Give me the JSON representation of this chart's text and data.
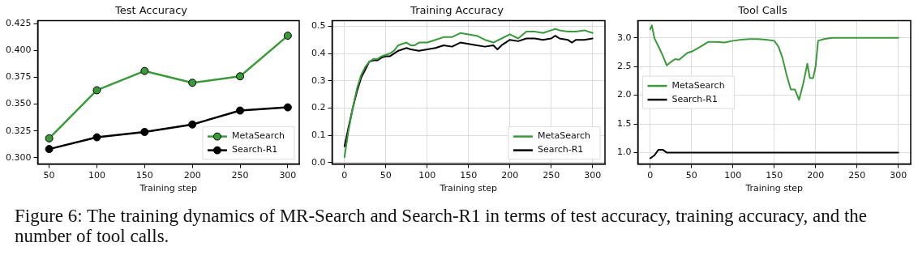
{
  "chart_data": [
    {
      "type": "line",
      "title": "Test Accuracy",
      "xlabel": "Training step",
      "x": [
        50,
        100,
        150,
        200,
        250,
        300
      ],
      "xlim": [
        38,
        312
      ],
      "xticks": [
        50,
        100,
        150,
        200,
        250,
        300
      ],
      "ylim": [
        0.294,
        0.428
      ],
      "yticks": [
        {
          "value": 0.3,
          "label": "0.300"
        },
        0.325,
        {
          "value": 0.35,
          "label": "0.350"
        },
        0.375,
        {
          "value": 0.4,
          "label": "0.400"
        },
        0.425
      ],
      "grid": false,
      "legend": "bottom right",
      "marker": "circle",
      "annotations": [
        "Figure 6: The training dynamics of MR-Search and Search-R1 in terms of test accuracy, training accuracy, and the number of tool calls."
      ],
      "series": [
        {
          "name": "MetaSearch",
          "color": "#3a9a3a",
          "values": [
            0.318,
            0.363,
            0.381,
            0.37,
            0.376,
            0.414
          ]
        },
        {
          "name": "Search-R1",
          "color": "#000000",
          "values": [
            0.308,
            0.319,
            0.324,
            0.331,
            0.344,
            0.347
          ]
        }
      ]
    },
    {
      "type": "line",
      "title": "Training Accuracy",
      "xlabel": "Training step",
      "xlim": [
        -15,
        315
      ],
      "xticks": [
        0,
        50,
        100,
        150,
        200,
        250,
        300
      ],
      "ylim": [
        -0.005,
        0.52
      ],
      "yticks": [
        {
          "value": 0,
          "label": "0.0"
        },
        0.1,
        0.2,
        0.3,
        0.4,
        0.5
      ],
      "grid": true,
      "legend": "bottom right",
      "series": [
        {
          "name": "MetaSearch",
          "color": "#3a9a3a",
          "x": [
            0,
            5,
            10,
            15,
            20,
            25,
            30,
            35,
            40,
            45,
            50,
            55,
            60,
            65,
            70,
            75,
            80,
            85,
            90,
            95,
            100,
            110,
            120,
            130,
            140,
            150,
            160,
            170,
            180,
            190,
            200,
            210,
            220,
            230,
            240,
            250,
            255,
            260,
            270,
            280,
            290,
            300
          ],
          "values": [
            0.02,
            0.12,
            0.2,
            0.27,
            0.32,
            0.35,
            0.37,
            0.38,
            0.38,
            0.39,
            0.395,
            0.4,
            0.41,
            0.43,
            0.435,
            0.44,
            0.43,
            0.43,
            0.44,
            0.44,
            0.44,
            0.45,
            0.46,
            0.46,
            0.475,
            0.47,
            0.465,
            0.45,
            0.44,
            0.455,
            0.47,
            0.455,
            0.48,
            0.48,
            0.475,
            0.485,
            0.49,
            0.485,
            0.48,
            0.48,
            0.485,
            0.475
          ]
        },
        {
          "name": "Search-R1",
          "color": "#000000",
          "x": [
            0,
            5,
            10,
            15,
            20,
            25,
            30,
            35,
            40,
            45,
            50,
            55,
            60,
            65,
            70,
            75,
            80,
            90,
            100,
            110,
            120,
            130,
            140,
            150,
            160,
            170,
            180,
            185,
            190,
            200,
            210,
            220,
            230,
            240,
            250,
            255,
            260,
            270,
            275,
            280,
            290,
            300
          ],
          "values": [
            0.06,
            0.13,
            0.2,
            0.26,
            0.31,
            0.34,
            0.37,
            0.375,
            0.375,
            0.385,
            0.39,
            0.39,
            0.4,
            0.41,
            0.415,
            0.42,
            0.415,
            0.41,
            0.415,
            0.42,
            0.43,
            0.425,
            0.44,
            0.435,
            0.43,
            0.425,
            0.43,
            0.415,
            0.43,
            0.45,
            0.445,
            0.455,
            0.455,
            0.45,
            0.455,
            0.465,
            0.455,
            0.45,
            0.44,
            0.45,
            0.45,
            0.455
          ]
        }
      ]
    },
    {
      "type": "line",
      "title": "Tool Calls",
      "xlabel": "Training step",
      "xlim": [
        -15,
        315
      ],
      "xticks": [
        0,
        50,
        100,
        150,
        200,
        250,
        300
      ],
      "ylim": [
        0.8,
        3.3
      ],
      "yticks": [
        {
          "value": 1,
          "label": "1.0"
        },
        1.5,
        {
          "value": 2,
          "label": "2.0"
        },
        2.5,
        {
          "value": 3,
          "label": "3.0"
        }
      ],
      "grid": true,
      "legend": "left",
      "series": [
        {
          "name": "MetaSearch",
          "color": "#3a9a3a",
          "x": [
            0,
            2,
            5,
            10,
            15,
            20,
            25,
            30,
            35,
            40,
            45,
            50,
            60,
            70,
            80,
            90,
            100,
            110,
            120,
            130,
            140,
            150,
            155,
            160,
            165,
            170,
            175,
            180,
            185,
            190,
            193,
            197,
            200,
            203,
            210,
            220,
            300
          ],
          "values": [
            3.15,
            3.22,
            3.0,
            2.85,
            2.7,
            2.52,
            2.58,
            2.63,
            2.62,
            2.68,
            2.74,
            2.76,
            2.84,
            2.93,
            2.93,
            2.92,
            2.95,
            2.97,
            2.98,
            2.98,
            2.97,
            2.95,
            2.85,
            2.65,
            2.35,
            2.1,
            2.1,
            1.92,
            2.2,
            2.55,
            2.3,
            2.3,
            2.5,
            2.95,
            2.98,
            3.0,
            3.0
          ]
        },
        {
          "name": "Search-R1",
          "color": "#000000",
          "x": [
            0,
            5,
            10,
            15,
            20,
            25,
            300
          ],
          "values": [
            0.9,
            0.95,
            1.05,
            1.05,
            1.0,
            1.0,
            1.0
          ]
        }
      ]
    }
  ]
}
